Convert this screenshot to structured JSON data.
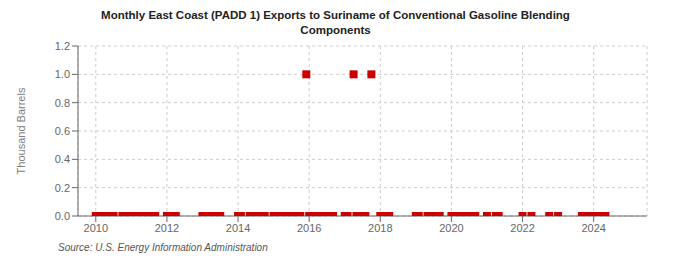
{
  "chart_data": {
    "type": "scatter",
    "title": "Monthly East Coast (PADD 1) Exports to Suriname of Conventional Gasoline Blending\nComponents",
    "ylabel": "Thousand Barrels",
    "annotation": "Source: U.S. Energy Information Administration",
    "color": "#cc0000",
    "marker": "square",
    "grid": true,
    "xlim": [
      2009.5,
      2025.5
    ],
    "ylim": [
      0,
      1.2
    ],
    "xticks": [
      2010,
      2012,
      2014,
      2016,
      2018,
      2020,
      2022,
      2024
    ],
    "yticks": [
      {
        "value": 0.0,
        "label": "0.0"
      },
      0.2,
      0.4,
      0.6,
      0.8,
      {
        "value": 1.0,
        "label": "1.0"
      },
      1.2
    ],
    "x": [
      2010.0,
      2010.08,
      2010.25,
      2010.33,
      2010.5,
      2010.75,
      2010.83,
      2011.0,
      2011.08,
      2011.25,
      2011.33,
      2011.5,
      2011.67,
      2012.0,
      2012.08,
      2012.25,
      2013.0,
      2013.08,
      2013.25,
      2013.33,
      2013.5,
      2014.0,
      2014.08,
      2014.33,
      2014.5,
      2014.67,
      2014.75,
      2015.0,
      2015.08,
      2015.25,
      2015.33,
      2015.5,
      2015.67,
      2015.75,
      2015.92,
      2016.0,
      2016.08,
      2016.17,
      2016.25,
      2016.33,
      2016.42,
      2016.5,
      2016.58,
      2016.67,
      2017.0,
      2017.08,
      2017.25,
      2017.33,
      2017.5,
      2017.58,
      2017.75,
      2018.0,
      2018.17,
      2018.25,
      2019.0,
      2019.08,
      2019.33,
      2019.5,
      2019.67,
      2020.0,
      2020.08,
      2020.25,
      2020.33,
      2020.5,
      2020.67,
      2021.0,
      2021.25,
      2021.33,
      2022.0,
      2022.25,
      2022.75,
      2023.0,
      2023.67,
      2023.75,
      2023.83,
      2024.0,
      2024.08,
      2024.17,
      2024.33
    ],
    "values": [
      0,
      0,
      0,
      0,
      0,
      0,
      0,
      0,
      0,
      0,
      0,
      0,
      0,
      0,
      0,
      0,
      0,
      0,
      0,
      0,
      0,
      0,
      0,
      0,
      0,
      0,
      0,
      0,
      0,
      0,
      0,
      0,
      0,
      0,
      1.0,
      0,
      0,
      0,
      0,
      0,
      0,
      0,
      0,
      0,
      0,
      0,
      1.0,
      0,
      0,
      0,
      1.0,
      0,
      0,
      0,
      0,
      0,
      0,
      0,
      0,
      0,
      0,
      0,
      0,
      0,
      0,
      0,
      0,
      0,
      0,
      0,
      0,
      0,
      0,
      0,
      0,
      0,
      0,
      0,
      0
    ]
  }
}
